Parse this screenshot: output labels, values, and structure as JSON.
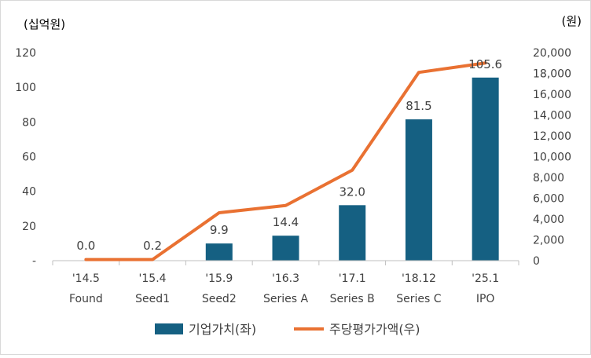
{
  "chart_data": {
    "type": "bar+line",
    "left_unit": "(십억원)",
    "right_unit": "(원)",
    "categories": [
      {
        "date": "'14.5",
        "stage": "Found"
      },
      {
        "date": "'15.4",
        "stage": "Seed1"
      },
      {
        "date": "'15.9",
        "stage": "Seed2"
      },
      {
        "date": "'16.3",
        "stage": "Series A"
      },
      {
        "date": "'17.1",
        "stage": "Series B"
      },
      {
        "date": "'18.12",
        "stage": "Series C"
      },
      {
        "date": "'25.1",
        "stage": "IPO"
      }
    ],
    "series": [
      {
        "name": "기업가치(좌)",
        "type": "bar",
        "axis": "left",
        "color": "#156082",
        "values": [
          0.0,
          0.2,
          9.9,
          14.4,
          32.0,
          81.5,
          105.6
        ],
        "labels": [
          "0.0",
          "0.2",
          "9.9",
          "14.4",
          "32.0",
          "81.5",
          "105.6"
        ]
      },
      {
        "name": "주당평가가액(우)",
        "type": "line",
        "axis": "right",
        "color": "#E97132",
        "values": [
          100,
          100,
          4600,
          5300,
          8700,
          18100,
          19000
        ]
      }
    ],
    "left_axis": {
      "ylim": [
        0,
        120
      ],
      "ticks": [
        "-",
        "20",
        "40",
        "60",
        "80",
        "100",
        "120"
      ]
    },
    "right_axis": {
      "ylim": [
        0,
        20000
      ],
      "ticks": [
        "0",
        "2,000",
        "4,000",
        "6,000",
        "8,000",
        "10,000",
        "12,000",
        "14,000",
        "16,000",
        "18,000",
        "20,000"
      ]
    },
    "grid": false,
    "legend_position": "bottom"
  }
}
